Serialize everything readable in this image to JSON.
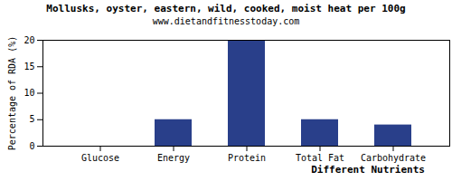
{
  "chart_data": {
    "type": "bar",
    "title": "Mollusks, oyster, eastern, wild, cooked, moist heat per 100g",
    "subtitle": "www.dietandfitnesstoday.com",
    "x_label": "Different Nutrients",
    "y_label": "Percentage of RDA (%)",
    "categories": [
      "Glucose",
      "Energy",
      "Protein",
      "Total Fat",
      "Carbohydrate"
    ],
    "values": [
      0,
      5,
      20,
      5,
      4
    ],
    "color": "#293f8a",
    "ylim": [
      0,
      20
    ],
    "yticks": [
      0,
      5,
      10,
      15,
      20
    ],
    "grid": false
  }
}
